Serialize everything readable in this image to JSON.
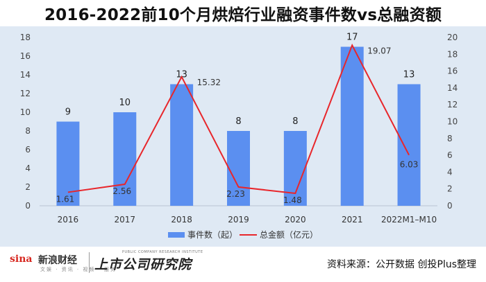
{
  "title": "2016-2022前10个月烘焙行业融资事件数vs总融资额",
  "chart_data": {
    "type": "bar",
    "categories": [
      "2016",
      "2017",
      "2018",
      "2019",
      "2020",
      "2021",
      "2022M1–M10"
    ],
    "series": [
      {
        "name": "事件数（起）",
        "type": "bar",
        "axis": "left",
        "color": "#5b8ff0",
        "values": [
          9,
          10,
          13,
          8,
          8,
          17,
          13
        ]
      },
      {
        "name": "总金额（亿元）",
        "type": "line",
        "axis": "right",
        "color": "#e8262b",
        "values": [
          1.61,
          2.56,
          15.32,
          2.23,
          1.48,
          19.07,
          6.03
        ]
      }
    ],
    "y_left": {
      "range": [
        0,
        18
      ],
      "ticks": [
        "0",
        "2",
        "4",
        "6",
        "8",
        "10",
        "12",
        "14",
        "16",
        "18"
      ]
    },
    "y_right": {
      "range": [
        0,
        20
      ],
      "ticks": [
        "0",
        "2",
        "4",
        "6",
        "8",
        "10",
        "12",
        "14",
        "16",
        "18",
        "20"
      ]
    },
    "bar_labels": [
      "9",
      "10",
      "13",
      "8",
      "8",
      "17",
      "13"
    ],
    "line_labels": [
      "1.61",
      "2.56",
      "15.32",
      "2.23",
      "1.48",
      "19.07",
      "6.03"
    ],
    "legend_position": "bottom",
    "grid": false
  },
  "legend": {
    "bar_label": "事件数（起）",
    "line_label": "总金额（亿元）"
  },
  "footer": {
    "sina_logo": "sina",
    "sina_name": "新浪财经",
    "sina_tags": "文娱 · 资讯 · 视频 · 服务",
    "research_name": "上市公司研究院",
    "research_en": "PUBLIC COMPANY RESEARCH INSTITUTE",
    "source": "资料来源：公开数据 创投Plus整理"
  }
}
